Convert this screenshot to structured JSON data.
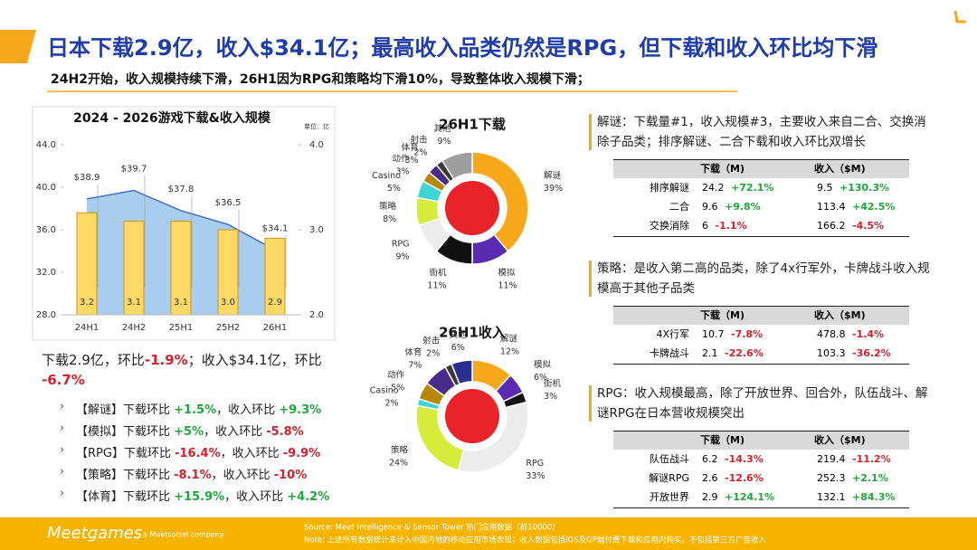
{
  "header": {
    "title": "日本下载2.9亿，收入$34.1亿；最高收入品类仍然是RPG，但下载和收入环比均下滑",
    "subtitle": "24H2开始，收入规模持续下滑，26H1因为RPG和策略均下滑10%，导致整体收入规模下滑；"
  },
  "chart_data": [
    {
      "type": "combo",
      "title": "2024 - 2026游戏下载&收入规模",
      "unit": "单位：亿",
      "categories": [
        "24H1",
        "24H2",
        "25H1",
        "25H2",
        "26H1"
      ],
      "ylim": [
        28,
        44
      ],
      "yticks": [
        {
          "value": 28,
          "label": "28.0"
        },
        {
          "value": 32,
          "label": "32.0"
        },
        {
          "value": 36,
          "label": "36.0"
        },
        {
          "value": 40,
          "label": "40.0"
        },
        {
          "value": 44,
          "label": "44.0"
        }
      ],
      "y2lim": [
        2,
        4
      ],
      "y2ticks": [
        {
          "value": 2,
          "label": "2.0"
        },
        {
          "value": 3,
          "label": "3.0"
        },
        {
          "value": 4,
          "label": "4.0"
        }
      ],
      "grid": false,
      "series": [
        {
          "type": "area",
          "color": "#a9cdee",
          "line_color": "#4472c4",
          "values": [
            38.9,
            39.7,
            37.8,
            36.5,
            34.1
          ],
          "value_labels": [
            "$38.9",
            "$39.7",
            "$37.8",
            "$36.5",
            "$34.1"
          ]
        },
        {
          "type": "bar",
          "axis": "y2",
          "color": "#ffd966",
          "line_color": "#c9971c",
          "values": [
            3.2,
            3.1,
            3.1,
            3.0,
            2.9
          ],
          "value_labels": [
            "3.2",
            "3.1",
            "3.1",
            "3.0",
            "2.9"
          ]
        }
      ]
    },
    {
      "type": "pie",
      "title": "26H1下载",
      "donut": true,
      "categories": [
        "解谜",
        "模拟",
        "街机",
        "RPG",
        "策略",
        "Casino",
        "动作",
        "体育",
        "射击",
        "其他"
      ],
      "values": [
        39,
        11,
        11,
        9,
        8,
        5,
        3,
        3,
        2,
        9
      ],
      "value_labels": [
        "39%",
        "11%",
        "11%",
        "9%",
        "8%",
        "5%",
        "3%",
        "3%",
        "2%",
        "9%"
      ],
      "colors": [
        "#f7a81b",
        "#5a2bb0",
        "#111111",
        "#ececec",
        "#d6ec3a",
        "#3ed5d8",
        "#b8860b",
        "#4a2a8a",
        "#3a3a3a",
        "#9e9e9e"
      ]
    },
    {
      "type": "pie",
      "title": "26H1收入",
      "donut": true,
      "categories": [
        "解谜",
        "模拟",
        "街机",
        "RPG",
        "策略",
        "Casino",
        "动作",
        "体育",
        "射击",
        "其他"
      ],
      "values": [
        12,
        6,
        3,
        33,
        24,
        2,
        5,
        7,
        2,
        6
      ],
      "value_labels": [
        "12%",
        "6%",
        "3%",
        "33%",
        "24%",
        "2%",
        "5%",
        "7%",
        "2%",
        "6%"
      ],
      "colors": [
        "#f7a81b",
        "#5a2bb0",
        "#111111",
        "#ececec",
        "#d6ec3a",
        "#3ed5d8",
        "#b8860b",
        "#4a2a8a",
        "#3a3a3a",
        "#2b2f8f"
      ]
    }
  ],
  "summary": [
    "下载2.9亿，环比",
    "-1.9%",
    "；收入$34.1亿，环比 ",
    "-6.7%"
  ],
  "bullets": [
    [
      "【解谜】下载环比 ",
      "+1.5%",
      "，收入环比 ",
      "+9.3%"
    ],
    [
      "【模拟】下载环比 ",
      "+5%",
      "，收入环比 ",
      "-5.8%"
    ],
    [
      "【RPG】下载环比 ",
      "-16.4%",
      "，收入环比 ",
      "-9.9%"
    ],
    [
      "【策略】下载环比 ",
      "-8.1%",
      "，收入环比 ",
      "-10%"
    ],
    [
      "【体育】下载环比 ",
      "+15.9%",
      "，收入环比 ",
      "+4.2%"
    ]
  ],
  "tables": [
    {
      "note": "解谜：下载量#1，收入规模#3，主要收入来自二合、交换消除子品类；排序解谜、二合下载和收入环比双增长",
      "headers": [
        "下载（M)",
        "收入（$M)"
      ],
      "rows": [
        [
          "排序解谜",
          "24.2",
          "+72.1%",
          "9.5",
          "+130.3%"
        ],
        [
          "二合",
          "9.6",
          "+9.8%",
          "113.4",
          "+42.5%"
        ],
        [
          "交换消除",
          "6",
          "-1.1%",
          "166.2",
          "-4.5%"
        ]
      ]
    },
    {
      "note": "策略：是收入第二高的品类，除了4x行军外，卡牌战斗收入规模高于其他子品类",
      "headers": [
        "下载（M)",
        "收入（$M)"
      ],
      "rows": [
        [
          "4X行军",
          "10.7",
          "-7.8%",
          "478.8",
          "-1.4%"
        ],
        [
          "卡牌战斗",
          "2.1",
          "-22.6%",
          "103.3",
          "-36.2%"
        ]
      ]
    },
    {
      "note": "RPG：收入规模最高，除了开放世界、回合外，队伍战斗、解谜RPG在日本营收规模突出",
      "headers": [
        "下载（M)",
        "收入（$M)"
      ],
      "rows": [
        [
          "队伍战斗",
          "6.2",
          "-14.3%",
          "219.4",
          "-11.2%"
        ],
        [
          "解谜RPG",
          "2.6",
          "-12.6%",
          "252.3",
          "+2.1%"
        ],
        [
          "开放世界",
          "2.9",
          "+124.1%",
          "132.1",
          "+84.3%"
        ]
      ]
    }
  ],
  "footer": {
    "logo": "Meetgames",
    "tagline": "a Meetsocial company",
    "source": "Source: Meet Intelligence & Sensor Tower 热门应用数据（前10000）",
    "note": "Note: 上述所有数据统计来计入中国内地的移动应用市场表现；收入数据包括iOS及GP端付费下载和应用内购买，不包括第三方广告收入"
  }
}
